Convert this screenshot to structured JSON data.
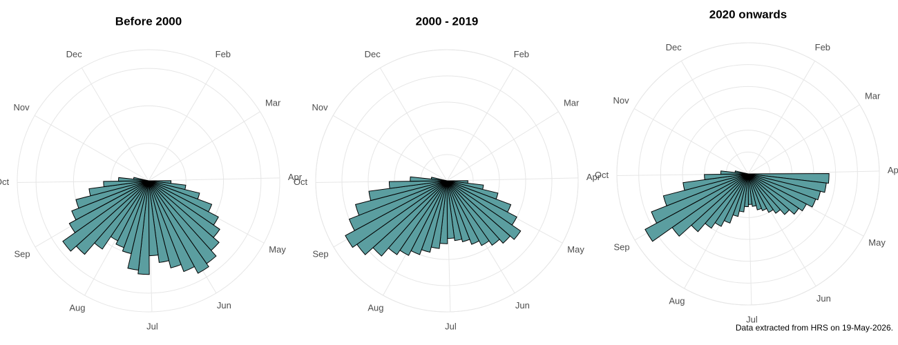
{
  "chart_data": [
    {
      "type": "polar-histogram",
      "title": "Before 2000",
      "color": "#5b9ea0",
      "bins": [
        91,
        98,
        105,
        112,
        119,
        126,
        133,
        140,
        147,
        154,
        161,
        168,
        175,
        182,
        189,
        196,
        203,
        210,
        217,
        224,
        231,
        238,
        245,
        252,
        259,
        266,
        273,
        280,
        287
      ],
      "values": [
        6,
        10,
        14,
        18,
        21,
        23,
        25,
        27,
        28,
        26,
        24,
        22,
        20,
        25,
        24,
        20,
        19,
        18,
        22,
        26,
        28,
        24,
        22,
        20,
        16,
        12,
        8,
        4
      ],
      "xlim": [
        0,
        365
      ],
      "xticks": [
        {
          "value": 31,
          "label": "Feb"
        },
        {
          "value": 59,
          "label": "Mar"
        },
        {
          "value": 90,
          "label": "Apr"
        },
        {
          "value": 120,
          "label": "May"
        },
        {
          "value": 151,
          "label": "Jun"
        },
        {
          "value": 181,
          "label": "Jul"
        },
        {
          "value": 212,
          "label": "Aug"
        },
        {
          "value": 243,
          "label": "Sep"
        },
        {
          "value": 273,
          "label": "Oct"
        },
        {
          "value": 304,
          "label": "Nov"
        },
        {
          "value": 334,
          "label": "Dec"
        }
      ],
      "ylim": [
        0,
        35
      ],
      "yticks": [
        0,
        10,
        20,
        30
      ],
      "grid": true
    },
    {
      "type": "polar-histogram",
      "title": "2000 - 2019",
      "color": "#5b9ea0",
      "bins": [
        91,
        98,
        105,
        112,
        119,
        126,
        133,
        140,
        147,
        154,
        161,
        168,
        175,
        182,
        189,
        196,
        203,
        210,
        217,
        224,
        231,
        238,
        245,
        252,
        259,
        266,
        273,
        280,
        287
      ],
      "values": [
        8,
        14,
        20,
        26,
        30,
        34,
        32,
        30,
        28,
        26,
        24,
        23,
        22,
        24,
        26,
        28,
        30,
        32,
        34,
        38,
        42,
        44,
        40,
        36,
        30,
        22,
        14,
        6
      ],
      "xlim": [
        0,
        365
      ],
      "xticks": [
        {
          "value": 31,
          "label": "Feb"
        },
        {
          "value": 59,
          "label": "Mar"
        },
        {
          "value": 90,
          "label": "Apr"
        },
        {
          "value": 120,
          "label": "May"
        },
        {
          "value": 151,
          "label": "Jun"
        },
        {
          "value": 181,
          "label": "Jul"
        },
        {
          "value": 212,
          "label": "Aug"
        },
        {
          "value": 243,
          "label": "Sep"
        },
        {
          "value": 273,
          "label": "Oct"
        },
        {
          "value": 304,
          "label": "Nov"
        },
        {
          "value": 334,
          "label": "Dec"
        }
      ],
      "ylim": [
        0,
        50
      ],
      "yticks": [
        0,
        10,
        20,
        30,
        40,
        50
      ],
      "grid": true
    },
    {
      "type": "polar-histogram",
      "title": "2020 onwards",
      "color": "#5b9ea0",
      "bins": [
        91,
        98,
        105,
        112,
        119,
        126,
        133,
        140,
        147,
        154,
        161,
        168,
        175,
        182,
        189,
        196,
        203,
        210,
        217,
        224,
        231,
        238,
        245,
        252,
        259,
        266,
        273,
        280,
        287
      ],
      "values": [
        74,
        72,
        68,
        66,
        60,
        56,
        50,
        44,
        40,
        36,
        34,
        30,
        28,
        30,
        35,
        40,
        48,
        54,
        60,
        70,
        85,
        107,
        95,
        80,
        60,
        40,
        25,
        12
      ],
      "xlim": [
        0,
        365
      ],
      "xticks": [
        {
          "value": 31,
          "label": "Feb"
        },
        {
          "value": 59,
          "label": "Mar"
        },
        {
          "value": 90,
          "label": "Apr"
        },
        {
          "value": 120,
          "label": "May"
        },
        {
          "value": 151,
          "label": "Jun"
        },
        {
          "value": 181,
          "label": "Jul"
        },
        {
          "value": 212,
          "label": "Aug"
        },
        {
          "value": 243,
          "label": "Sep"
        },
        {
          "value": 273,
          "label": "Oct"
        },
        {
          "value": 304,
          "label": "Nov"
        },
        {
          "value": 334,
          "label": "Dec"
        }
      ],
      "ylim": [
        0,
        120
      ],
      "yticks": [
        0,
        20,
        40,
        60,
        80,
        100,
        120
      ],
      "grid": true
    }
  ],
  "footnote": "Data extracted from HRS on 19-May-2026."
}
